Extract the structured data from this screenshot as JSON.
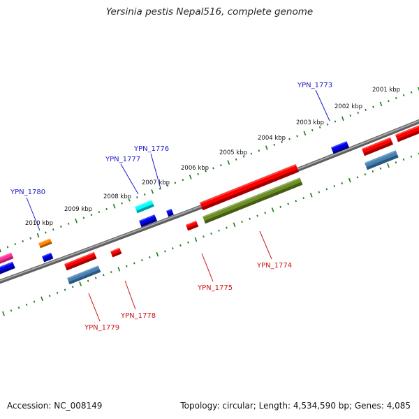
{
  "title": "Yersinia pestis Nepal516, complete genome",
  "footer": {
    "accession": "Accession: NC_008149",
    "summary": "Topology: circular; Length: 4,534,590 bp; Genes: 4,085"
  },
  "colors": {
    "backbone": "#808080",
    "tick": "#1a7a1a",
    "label_blue": "#1a1acc",
    "label_red": "#cc1111"
  },
  "kbp_labels": [
    "2001 kbp",
    "2002 kbp",
    "2003 kbp",
    "2004 kbp",
    "2005 kbp",
    "2006 kbp",
    "2007 kbp",
    "2008 kbp",
    "2009 kbp",
    "2010 kbp"
  ],
  "genes": [
    {
      "name": "YPN_1773",
      "color": "blue"
    },
    {
      "name": "YPN_1774",
      "color": "red"
    },
    {
      "name": "YPN_1775",
      "color": "red"
    },
    {
      "name": "YPN_1776",
      "color": "blue"
    },
    {
      "name": "YPN_1777",
      "color": "blue"
    },
    {
      "name": "YPN_1778",
      "color": "red"
    },
    {
      "name": "YPN_1779",
      "color": "red"
    },
    {
      "name": "YPN_1780",
      "color": "blue"
    }
  ]
}
